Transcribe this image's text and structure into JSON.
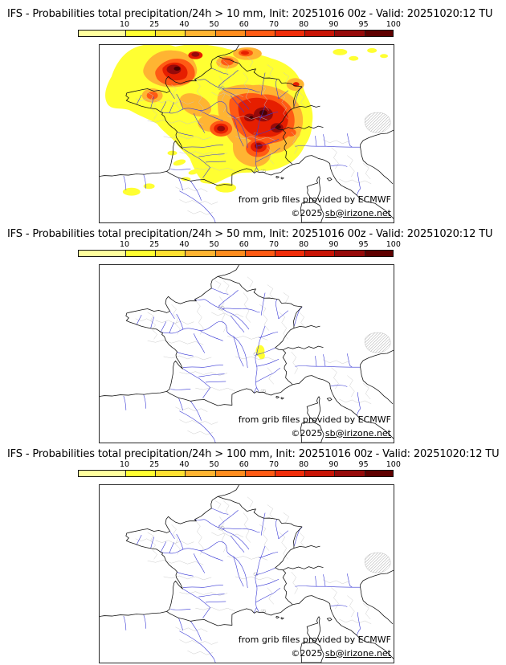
{
  "panels": [
    {
      "title": "IFS - Probabilities total precipitation/24h > 10 mm, Init: 20251016 00z - Valid: 20251020:12 TU",
      "threshold": "10 mm"
    },
    {
      "title": "IFS - Probabilities total precipitation/24h > 50 mm, Init: 20251016 00z - Valid: 20251020:12 TU",
      "threshold": "50 mm"
    },
    {
      "title": "IFS - Probabilities total precipitation/24h > 100 mm, Init: 20251016 00z - Valid: 20251020:12 TU",
      "threshold": "100 mm"
    }
  ],
  "colorbar": {
    "tick_labels": [
      "10",
      "25",
      "40",
      "50",
      "60",
      "70",
      "80",
      "90",
      "95",
      "100"
    ],
    "segment_colors": [
      "#FFFF9E",
      "#FFFF32",
      "#FFE132",
      "#FFB432",
      "#FF8C1E",
      "#FF5A14",
      "#F02D0A",
      "#C81405",
      "#960A0A",
      "#5F0000"
    ]
  },
  "credits": {
    "provider_line": "from grib files provided by ECMWF",
    "copyright_prefix": "©2025 ",
    "copyright_link": "sb@irizone.net"
  }
}
